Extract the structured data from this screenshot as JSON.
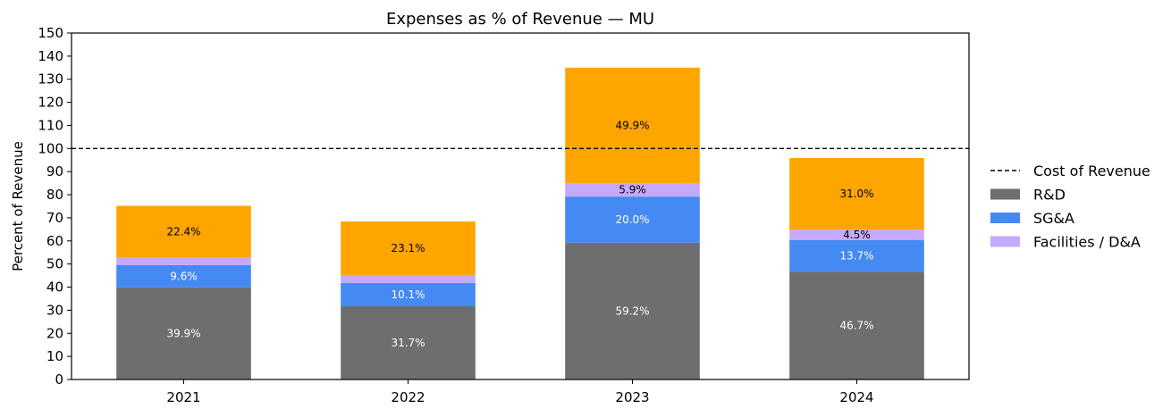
{
  "chart_data": {
    "type": "bar",
    "stacked": true,
    "title": "Expenses as % of Revenue — MU",
    "xlabel": "",
    "ylabel": "Percent of Revenue",
    "ylim": [
      0,
      150
    ],
    "yticks": [
      0,
      10,
      20,
      30,
      40,
      50,
      60,
      70,
      80,
      90,
      100,
      110,
      120,
      130,
      140,
      150
    ],
    "categories": [
      "2021",
      "2022",
      "2023",
      "2024"
    ],
    "series": [
      {
        "name": "R&D",
        "color": "#6e6e6e",
        "label_color": "#ffffff",
        "values": [
          39.9,
          31.7,
          59.2,
          46.7
        ],
        "labels": [
          "39.9%",
          "31.7%",
          "59.2%",
          "46.7%"
        ]
      },
      {
        "name": "SG&A",
        "color": "#4589f2",
        "label_color": "#ffffff",
        "values": [
          9.6,
          10.1,
          20.0,
          13.7
        ],
        "labels": [
          "9.6%",
          "10.1%",
          "20.0%",
          "13.7%"
        ]
      },
      {
        "name": "Facilities / D&A",
        "color": "#c5a9fb",
        "label_color": "#000000",
        "values": [
          3.3,
          3.5,
          5.9,
          4.5
        ],
        "labels": [
          "",
          "",
          "5.9%",
          "4.5%"
        ]
      },
      {
        "name": "",
        "color": "#ffa500",
        "label_color": "#000000",
        "values": [
          22.4,
          23.1,
          49.9,
          31.0
        ],
        "labels": [
          "22.4%",
          "23.1%",
          "49.9%",
          "31.0%"
        ]
      }
    ],
    "reference_line": {
      "name": "Cost of Revenue",
      "value": 100,
      "style": "dashed",
      "color": "#000000"
    },
    "grid": false,
    "legend_position": "right"
  },
  "legend": [
    {
      "label": "Cost of Revenue",
      "kind": "dashed-line",
      "color": "#000000"
    },
    {
      "label": "R&D",
      "kind": "swatch",
      "color": "#6e6e6e"
    },
    {
      "label": "SG&A",
      "kind": "swatch",
      "color": "#4589f2"
    },
    {
      "label": "Facilities / D&A",
      "kind": "swatch",
      "color": "#c5a9fb"
    }
  ]
}
